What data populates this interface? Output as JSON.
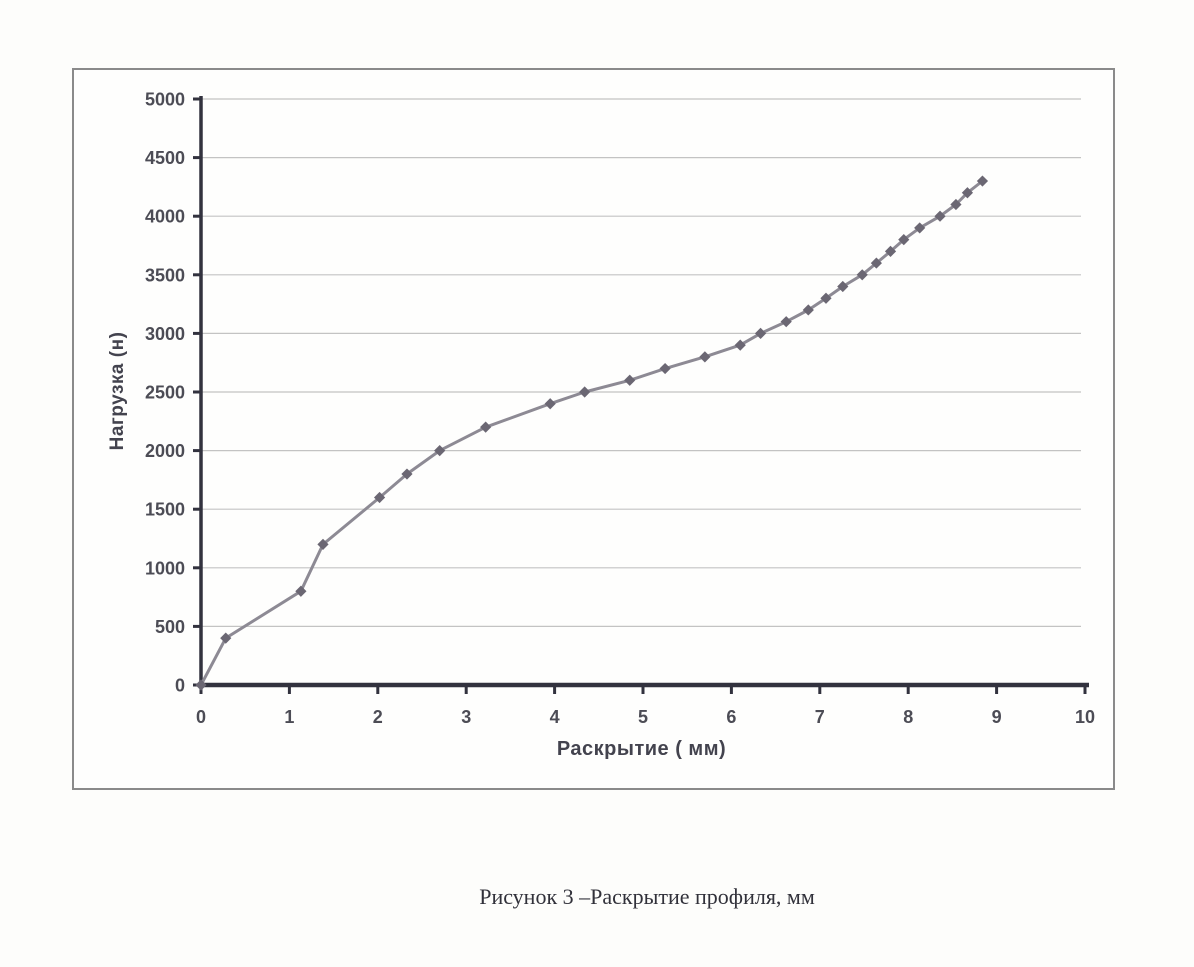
{
  "caption": "Рисунок 3 –Раскрытие профиля, мм",
  "chart_data": {
    "type": "line",
    "title": "",
    "xlabel": "Раскрытие ( мм)",
    "ylabel": "Нагрузка (н)",
    "xlim": [
      0,
      10
    ],
    "ylim": [
      0,
      5000
    ],
    "x_ticks": [
      0,
      1,
      2,
      3,
      4,
      5,
      6,
      7,
      8,
      9,
      10
    ],
    "y_ticks": [
      0,
      500,
      1000,
      1500,
      2000,
      2500,
      3000,
      3500,
      4000,
      4500,
      5000
    ],
    "grid": "horizontal-only",
    "legend": "none",
    "marker": "diamond",
    "series": [
      {
        "name": "Нагрузка",
        "x": [
          0,
          0.28,
          1.13,
          1.38,
          2.02,
          2.33,
          2.7,
          3.22,
          3.95,
          4.34,
          4.85,
          5.25,
          5.7,
          6.1,
          6.33,
          6.62,
          6.87,
          7.07,
          7.26,
          7.48,
          7.64,
          7.8,
          7.95,
          8.13,
          8.36,
          8.54,
          8.67,
          8.84
        ],
        "y": [
          0,
          400,
          800,
          1200,
          1600,
          1800,
          2000,
          2200,
          2400,
          2500,
          2600,
          2700,
          2800,
          2900,
          3000,
          3100,
          3200,
          3300,
          3400,
          3500,
          3600,
          3700,
          3800,
          3900,
          4000,
          4100,
          4200,
          4300
        ]
      }
    ],
    "colors": {
      "line": "#8d8a94",
      "marker": "#6b6773",
      "axis": "#32323e",
      "gridline": "#c3c3c3",
      "tick_label": "#4c4c55",
      "axis_title": "#43434e",
      "frame_border": "#8a8a8a",
      "background": "#fdfdfb"
    }
  }
}
